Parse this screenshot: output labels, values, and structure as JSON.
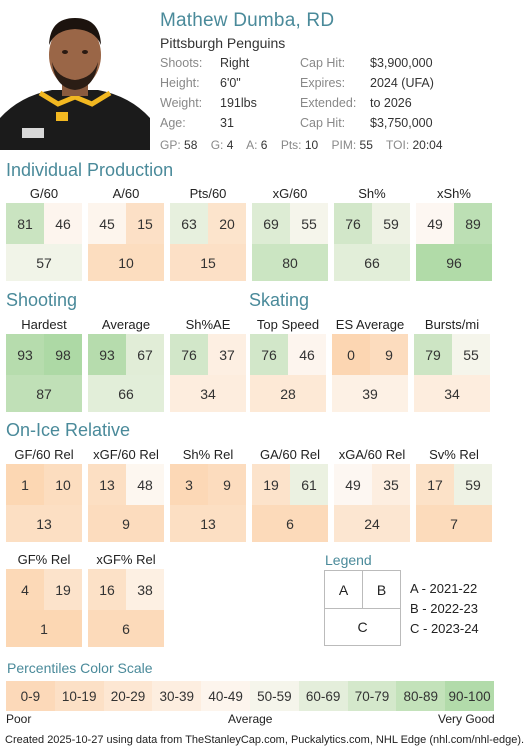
{
  "player": {
    "name": "Mathew Dumba, RD",
    "team": "Pittsburgh Penguins",
    "info": [
      {
        "l1": "Shoots:",
        "v1": "Right",
        "l2": "Cap Hit:",
        "v2": "$3,900,000"
      },
      {
        "l1": "Height:",
        "v1": "6'0\"",
        "l2": "Expires:",
        "v2": "2024 (UFA)"
      },
      {
        "l1": "Weight:",
        "v1": "191lbs",
        "l2": "Extended:",
        "v2": "to 2026"
      },
      {
        "l1": "Age:",
        "v1": "31",
        "l2": "Cap Hit:",
        "v2": "$3,750,000"
      }
    ],
    "stats": [
      {
        "label": "GP:",
        "value": "58"
      },
      {
        "label": "G:",
        "value": "4"
      },
      {
        "label": "A:",
        "value": "6"
      },
      {
        "label": "Pts:",
        "value": "10"
      },
      {
        "label": "PIM:",
        "value": "55"
      },
      {
        "label": "TOI:",
        "value": "20:04"
      }
    ]
  },
  "sections": {
    "individual_production": "Individual Production",
    "shooting": "Shooting",
    "skating": "Skating",
    "on_ice_relative": "On-Ice Relative"
  },
  "metrics": {
    "individual": [
      {
        "label": "G/60",
        "a": 81,
        "b": 46,
        "c": 57
      },
      {
        "label": "A/60",
        "a": 45,
        "b": 15,
        "c": 10
      },
      {
        "label": "Pts/60",
        "a": 63,
        "b": 20,
        "c": 15
      },
      {
        "label": "xG/60",
        "a": 69,
        "b": 55,
        "c": 80
      },
      {
        "label": "Sh%",
        "a": 76,
        "b": 59,
        "c": 66
      },
      {
        "label": "xSh%",
        "a": 49,
        "b": 89,
        "c": 96
      }
    ],
    "shooting": [
      {
        "label": "Hardest",
        "a": 93,
        "b": 98,
        "c": 87
      },
      {
        "label": "Average",
        "a": 93,
        "b": 67,
        "c": 66
      },
      {
        "label": "Sh%AE",
        "a": 76,
        "b": 37,
        "c": 34
      }
    ],
    "skating": [
      {
        "label": "Top Speed",
        "a": 76,
        "b": 46,
        "c": 28
      },
      {
        "label": "ES Average",
        "a": 0,
        "b": 9,
        "c": 39
      },
      {
        "label": "Bursts/mi",
        "a": 79,
        "b": 55,
        "c": 34
      }
    ],
    "onice1": [
      {
        "label": "GF/60 Rel",
        "a": 1,
        "b": 10,
        "c": 13
      },
      {
        "label": "xGF/60 Rel",
        "a": 13,
        "b": 48,
        "c": 9
      },
      {
        "label": "Sh% Rel",
        "a": 3,
        "b": 9,
        "c": 13
      },
      {
        "label": "GA/60 Rel",
        "a": 19,
        "b": 61,
        "c": 6
      },
      {
        "label": "xGA/60 Rel",
        "a": 49,
        "b": 35,
        "c": 24
      },
      {
        "label": "Sv% Rel",
        "a": 17,
        "b": 59,
        "c": 7
      }
    ],
    "onice2": [
      {
        "label": "GF% Rel",
        "a": 4,
        "b": 19,
        "c": 1
      },
      {
        "label": "xGF% Rel",
        "a": 16,
        "b": 38,
        "c": 6
      }
    ]
  },
  "legend": {
    "title": "Legend",
    "a": "A",
    "b": "B",
    "c": "C",
    "items": [
      "A - 2021-22",
      "B - 2022-23",
      "C - 2023-24"
    ]
  },
  "scale": {
    "title": "Percentiles Color Scale",
    "bins": [
      "0-9",
      "10-19",
      "20-29",
      "30-39",
      "40-49",
      "50-59",
      "60-69",
      "70-79",
      "80-89",
      "90-100"
    ],
    "poor": "Poor",
    "average": "Average",
    "very_good": "Very Good"
  },
  "footer": "Created 2025-10-27 using data from TheStanleyCap.com, Puckalytics.com, NHL Edge (nhl.com/nhl-edge)."
}
